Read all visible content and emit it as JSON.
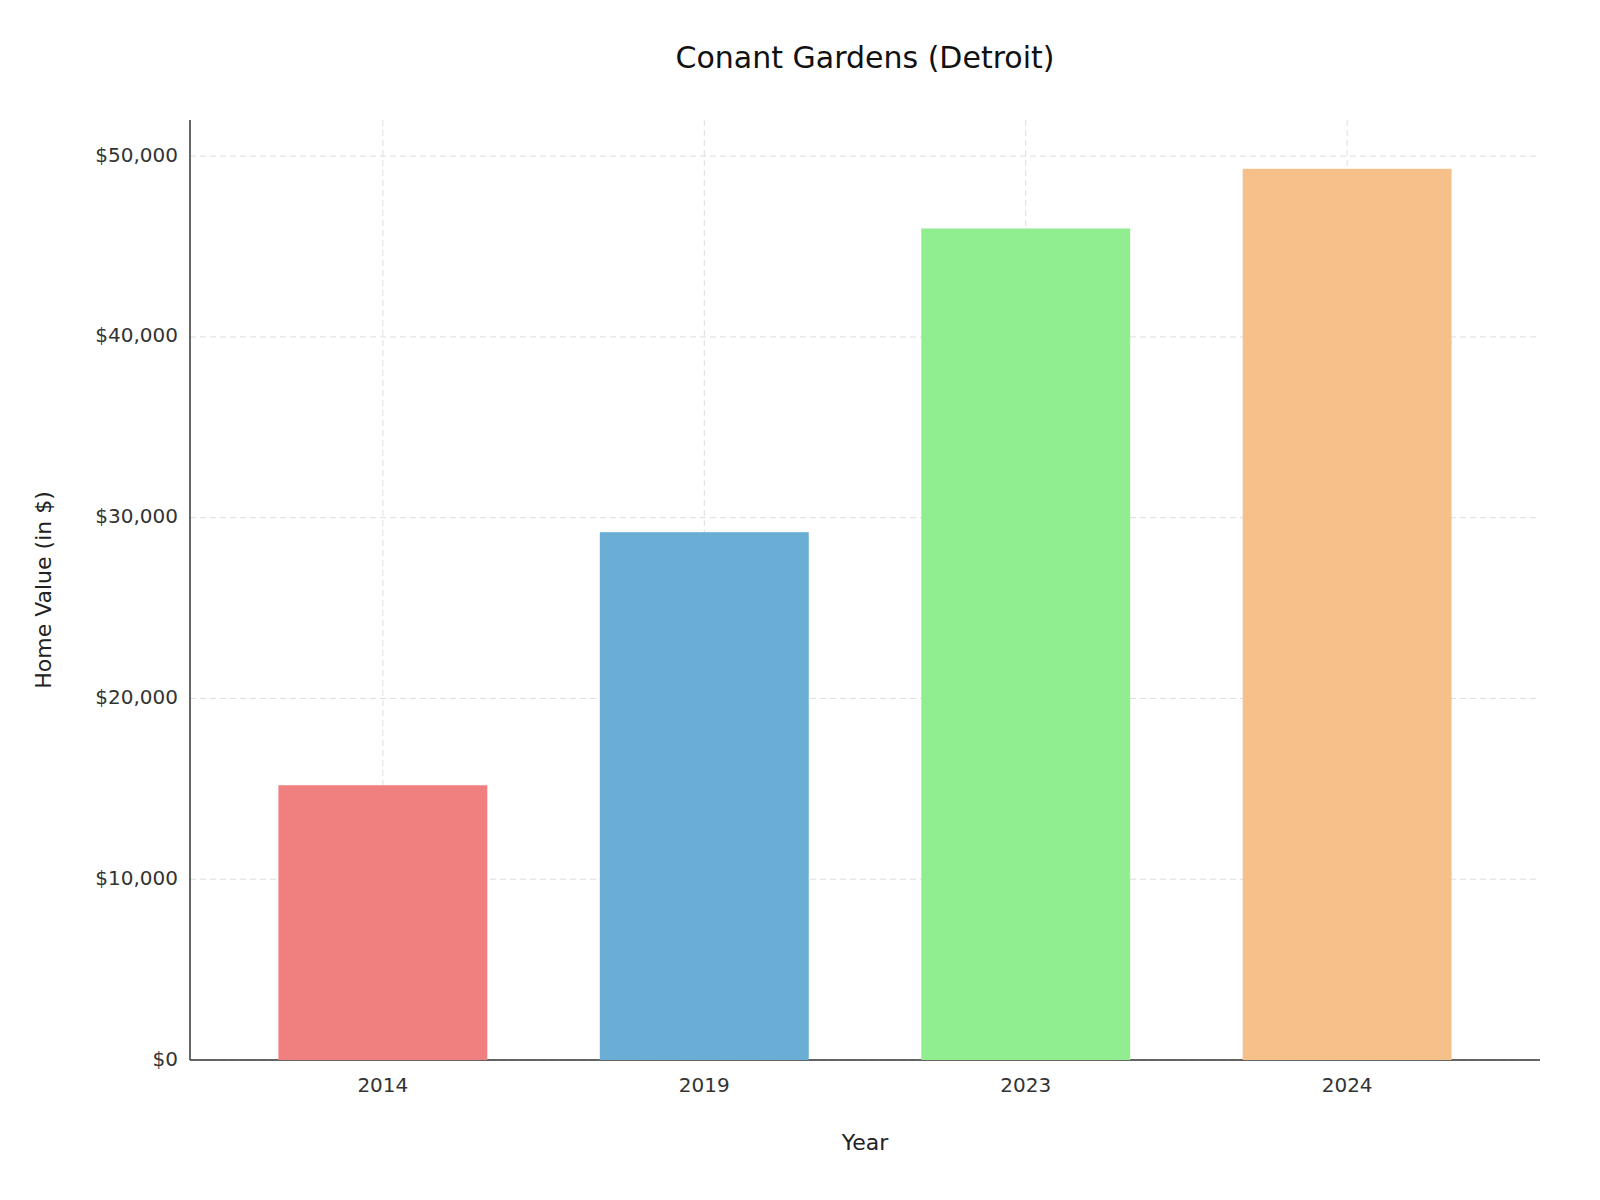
{
  "chart_data": {
    "type": "bar",
    "title": "Conant Gardens (Detroit)",
    "xlabel": "Year",
    "ylabel": "Home Value (in $)",
    "categories": [
      "2014",
      "2019",
      "2023",
      "2024"
    ],
    "values": [
      15200,
      29200,
      46000,
      49300
    ],
    "colors": [
      "#F08080",
      "#6aaed6",
      "#90EE90",
      "#F5C08A"
    ],
    "ylim": [
      0,
      52000
    ],
    "yticks": [
      {
        "value": 0,
        "label": "$0"
      },
      {
        "value": 10000,
        "label": "$10,000"
      },
      {
        "value": 20000,
        "label": "$20,000"
      },
      {
        "value": 30000,
        "label": "$30,000"
      },
      {
        "value": 40000,
        "label": "$40,000"
      },
      {
        "value": 50000,
        "label": "$50,000"
      }
    ],
    "grid": true
  }
}
